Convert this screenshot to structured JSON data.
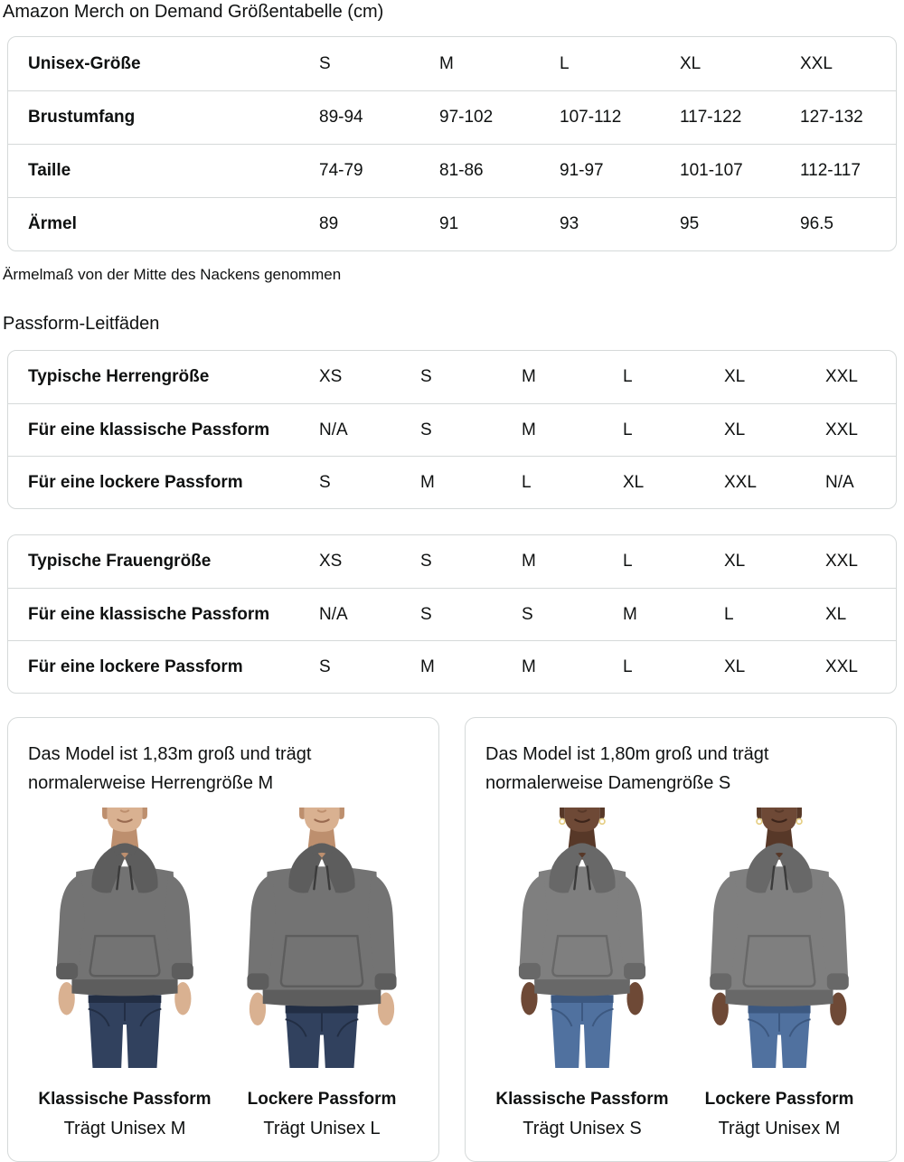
{
  "page": {
    "title": "Amazon Merch on Demand Größentabelle (cm)",
    "note": "Ärmelmaß von der Mitte des Nackens genommen",
    "fit_heading": "Passform-Leitfäden"
  },
  "tables": {
    "unisex": {
      "rows": [
        {
          "label": "Unisex-Größe",
          "values": [
            "S",
            "M",
            "L",
            "XL",
            "XXL"
          ]
        },
        {
          "label": "Brustumfang",
          "values": [
            "89-94",
            "97-102",
            "107-112",
            "117-122",
            "127-132"
          ]
        },
        {
          "label": "Taille",
          "values": [
            "74-79",
            "81-86",
            "91-97",
            "101-107",
            "112-117"
          ]
        },
        {
          "label": "Ärmel",
          "values": [
            "89",
            "91",
            "93",
            "95",
            "96.5"
          ]
        }
      ]
    },
    "mens_fit": {
      "rows": [
        {
          "label": "Typische Herrengröße",
          "values": [
            "XS",
            "S",
            "M",
            "L",
            "XL",
            "XXL"
          ]
        },
        {
          "label": "Für eine klassische Passform",
          "values": [
            "N/A",
            "S",
            "M",
            "L",
            "XL",
            "XXL"
          ]
        },
        {
          "label": "Für eine lockere Passform",
          "values": [
            "S",
            "M",
            "L",
            "XL",
            "XXL",
            "N/A"
          ]
        }
      ]
    },
    "womens_fit": {
      "rows": [
        {
          "label": "Typische Frauengröße",
          "values": [
            "XS",
            "S",
            "M",
            "L",
            "XL",
            "XXL"
          ]
        },
        {
          "label": "Für eine klassische Passform",
          "values": [
            "N/A",
            "S",
            "S",
            "M",
            "L",
            "XL"
          ]
        },
        {
          "label": "Für eine lockere Passform",
          "values": [
            "S",
            "M",
            "M",
            "L",
            "XL",
            "XXL"
          ]
        }
      ]
    }
  },
  "model_cards": [
    {
      "description": "Das Model ist 1,83m groß und trägt normalerweise Herrengröße M",
      "models": [
        {
          "fit_label": "Klassische Passform",
          "size_label": "Trägt Unisex M",
          "figure": "male-classic"
        },
        {
          "fit_label": "Lockere Passform",
          "size_label": "Trägt Unisex L",
          "figure": "male-loose"
        }
      ]
    },
    {
      "description": "Das Model ist 1,80m groß und trägt normalerweise Damengröße S",
      "models": [
        {
          "fit_label": "Klassische Passform",
          "size_label": "Trägt Unisex S",
          "figure": "female-classic"
        },
        {
          "fit_label": "Lockere Passform",
          "size_label": "Trägt Unisex M",
          "figure": "female-loose"
        }
      ]
    }
  ],
  "figures": {
    "male-classic": {
      "sw": 56,
      "hem": 206,
      "jw": 42,
      "earrings": false,
      "skin": "#d9b191",
      "skin2": "#bd8f6e",
      "mouth": "#996a50",
      "hoodie": "#737373",
      "hoodie2": "#5d5d5d",
      "jeans": "#31415e",
      "jeans2": "#222e44"
    },
    "male-loose": {
      "sw": 63,
      "hem": 218,
      "jw": 42,
      "earrings": false,
      "skin": "#d9b191",
      "skin2": "#bd8f6e",
      "mouth": "#996a50",
      "hoodie": "#737373",
      "hoodie2": "#5d5d5d",
      "jeans": "#31415e",
      "jeans2": "#222e44"
    },
    "female-classic": {
      "sw": 50,
      "hem": 206,
      "jw": 36,
      "earrings": true,
      "skin": "#6e4936",
      "skin2": "#573828",
      "mouth": "#3c241a",
      "hoodie": "#7f7f7f",
      "hoodie2": "#686868",
      "jeans": "#50719f",
      "jeans2": "#3c5880"
    },
    "female-loose": {
      "sw": 57,
      "hem": 218,
      "jw": 36,
      "earrings": true,
      "skin": "#6e4936",
      "skin2": "#573828",
      "mouth": "#3c241a",
      "hoodie": "#7f7f7f",
      "hoodie2": "#686868",
      "jeans": "#50719f",
      "jeans2": "#3c5880"
    }
  },
  "colors": {
    "text": "#0f1111",
    "table_border": "#d5d9d9",
    "row_divider": "#d5d9d9",
    "background": "#ffffff",
    "hoodie_gray": "#737373",
    "jeans_dark_blue": "#31415e",
    "jeans_light_blue": "#50719f"
  }
}
